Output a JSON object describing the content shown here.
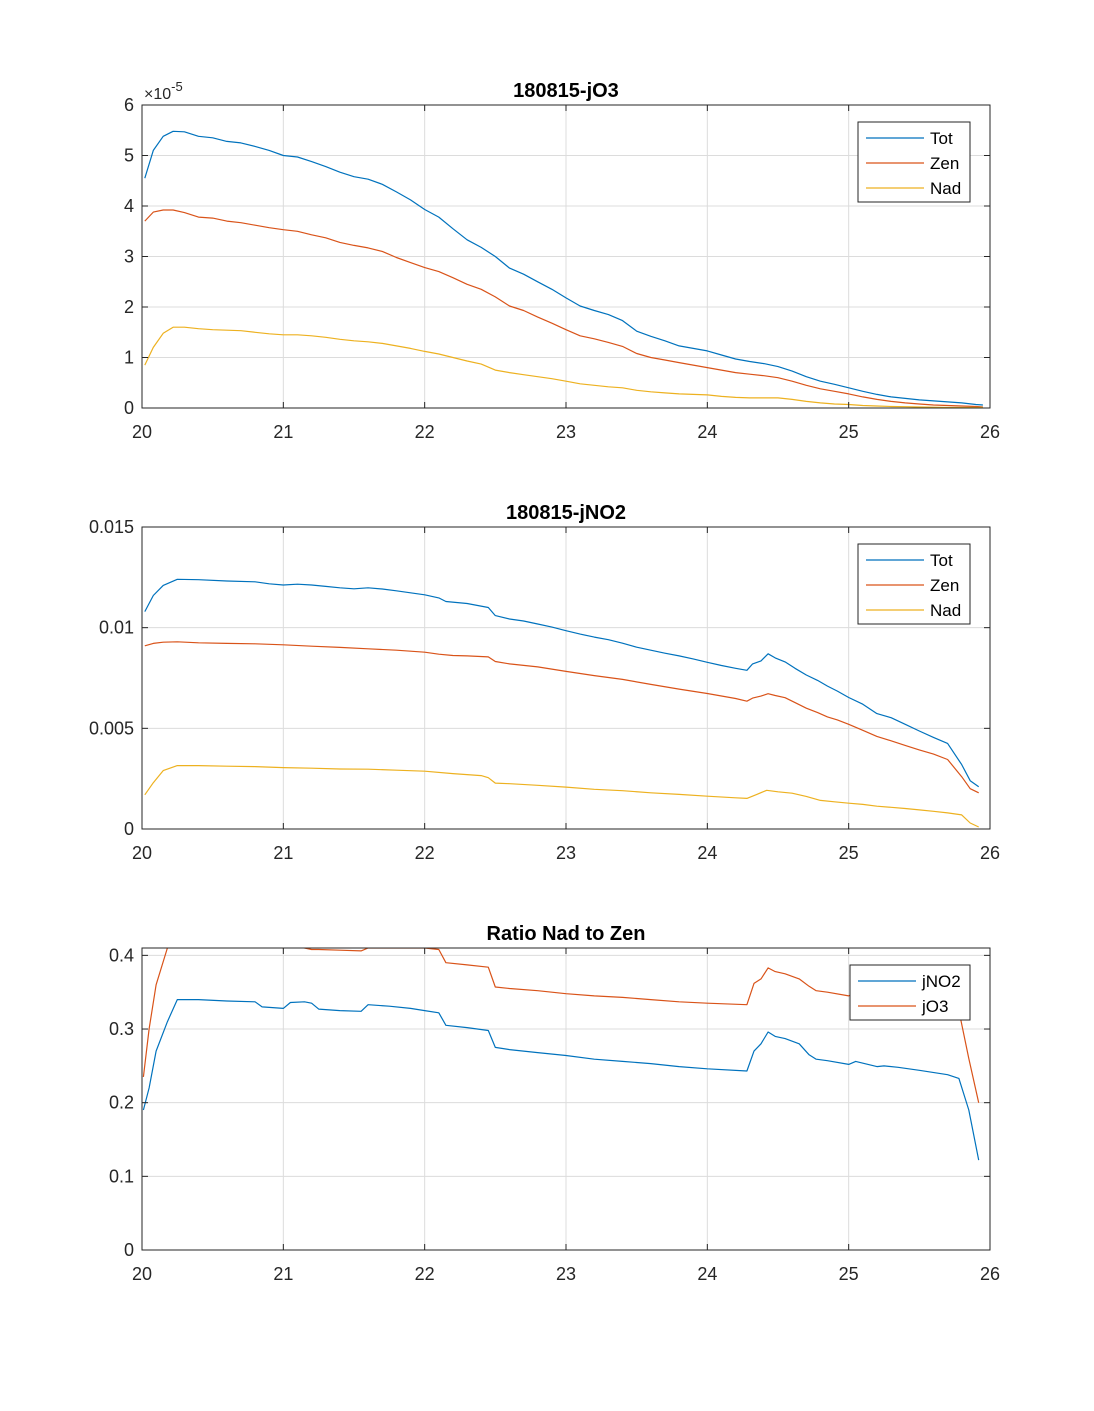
{
  "figure": {
    "colors": {
      "tot": "#0072BD",
      "zen": "#D95319",
      "nad": "#EDB120",
      "grid": "#dcdcdc",
      "axis": "#262626"
    }
  },
  "chart_data": [
    {
      "type": "line",
      "title": "180815-jO3",
      "xlabel": "",
      "ylabel": "",
      "xlim": [
        20,
        26
      ],
      "ylim": [
        0,
        6
      ],
      "xticks": [
        20,
        21,
        22,
        23,
        24,
        25,
        26
      ],
      "yticks": [
        0,
        1,
        2,
        3,
        4,
        5,
        6
      ],
      "y_exponent_label": "×10",
      "y_exponent": "-5",
      "grid": true,
      "legend_position": "top-right",
      "series": [
        {
          "name": "Tot",
          "color": "#0072BD",
          "x": [
            20.02,
            20.08,
            20.15,
            20.22,
            20.3,
            20.4,
            20.5,
            20.6,
            20.7,
            20.8,
            20.9,
            21.0,
            21.1,
            21.2,
            21.3,
            21.4,
            21.5,
            21.6,
            21.7,
            21.8,
            21.9,
            22.0,
            22.1,
            22.2,
            22.3,
            22.4,
            22.5,
            22.6,
            22.7,
            22.8,
            22.9,
            23.0,
            23.1,
            23.2,
            23.3,
            23.4,
            23.5,
            23.6,
            23.7,
            23.8,
            23.9,
            24.0,
            24.1,
            24.2,
            24.3,
            24.4,
            24.5,
            24.6,
            24.7,
            24.8,
            24.9,
            25.0,
            25.1,
            25.2,
            25.3,
            25.4,
            25.5,
            25.6,
            25.7,
            25.8,
            25.9,
            25.95
          ],
          "y": [
            4.55,
            5.1,
            5.38,
            5.48,
            5.47,
            5.38,
            5.35,
            5.28,
            5.25,
            5.18,
            5.1,
            5.0,
            4.97,
            4.88,
            4.78,
            4.67,
            4.58,
            4.53,
            4.43,
            4.28,
            4.12,
            3.93,
            3.78,
            3.55,
            3.33,
            3.18,
            3.0,
            2.77,
            2.65,
            2.5,
            2.35,
            2.18,
            2.02,
            1.93,
            1.85,
            1.73,
            1.52,
            1.42,
            1.33,
            1.23,
            1.18,
            1.13,
            1.05,
            0.97,
            0.92,
            0.88,
            0.82,
            0.73,
            0.62,
            0.53,
            0.47,
            0.4,
            0.33,
            0.27,
            0.22,
            0.19,
            0.16,
            0.14,
            0.12,
            0.1,
            0.07,
            0.06
          ]
        },
        {
          "name": "Zen",
          "color": "#D95319",
          "x": [
            20.02,
            20.08,
            20.15,
            20.22,
            20.3,
            20.4,
            20.5,
            20.6,
            20.7,
            20.8,
            20.9,
            21.0,
            21.1,
            21.2,
            21.3,
            21.4,
            21.5,
            21.6,
            21.7,
            21.8,
            21.9,
            22.0,
            22.1,
            22.2,
            22.3,
            22.4,
            22.5,
            22.6,
            22.7,
            22.8,
            22.9,
            23.0,
            23.1,
            23.2,
            23.3,
            23.4,
            23.5,
            23.6,
            23.7,
            23.8,
            23.9,
            24.0,
            24.1,
            24.2,
            24.3,
            24.4,
            24.5,
            24.6,
            24.7,
            24.8,
            24.9,
            25.0,
            25.1,
            25.2,
            25.3,
            25.4,
            25.5,
            25.6,
            25.7,
            25.8,
            25.9,
            25.95
          ],
          "y": [
            3.7,
            3.88,
            3.92,
            3.92,
            3.87,
            3.78,
            3.76,
            3.7,
            3.67,
            3.62,
            3.57,
            3.53,
            3.5,
            3.43,
            3.37,
            3.28,
            3.22,
            3.17,
            3.1,
            2.98,
            2.88,
            2.78,
            2.7,
            2.58,
            2.45,
            2.35,
            2.2,
            2.02,
            1.93,
            1.8,
            1.68,
            1.55,
            1.43,
            1.37,
            1.3,
            1.22,
            1.08,
            1.0,
            0.95,
            0.9,
            0.85,
            0.8,
            0.75,
            0.7,
            0.67,
            0.64,
            0.6,
            0.53,
            0.45,
            0.38,
            0.33,
            0.28,
            0.22,
            0.17,
            0.13,
            0.1,
            0.08,
            0.06,
            0.05,
            0.04,
            0.03,
            0.02
          ]
        },
        {
          "name": "Nad",
          "color": "#EDB120",
          "x": [
            20.02,
            20.08,
            20.15,
            20.22,
            20.3,
            20.4,
            20.5,
            20.6,
            20.7,
            20.8,
            20.9,
            21.0,
            21.1,
            21.2,
            21.3,
            21.4,
            21.5,
            21.6,
            21.7,
            21.8,
            21.9,
            22.0,
            22.1,
            22.2,
            22.3,
            22.4,
            22.5,
            22.6,
            22.7,
            22.8,
            22.9,
            23.0,
            23.1,
            23.2,
            23.3,
            23.4,
            23.5,
            23.6,
            23.7,
            23.8,
            23.9,
            24.0,
            24.1,
            24.2,
            24.3,
            24.4,
            24.5,
            24.6,
            24.7,
            24.8,
            24.9,
            25.0,
            25.1,
            25.2,
            25.3,
            25.4,
            25.5,
            25.6,
            25.7,
            25.8,
            25.9,
            25.95
          ],
          "y": [
            0.85,
            1.2,
            1.48,
            1.6,
            1.6,
            1.57,
            1.55,
            1.54,
            1.53,
            1.5,
            1.47,
            1.45,
            1.45,
            1.43,
            1.4,
            1.36,
            1.33,
            1.31,
            1.28,
            1.23,
            1.18,
            1.12,
            1.07,
            1.0,
            0.93,
            0.87,
            0.75,
            0.7,
            0.66,
            0.62,
            0.58,
            0.53,
            0.48,
            0.45,
            0.42,
            0.4,
            0.35,
            0.32,
            0.3,
            0.28,
            0.27,
            0.26,
            0.23,
            0.21,
            0.2,
            0.2,
            0.2,
            0.17,
            0.13,
            0.1,
            0.08,
            0.07,
            0.05,
            0.04,
            0.03,
            0.025,
            0.02,
            0.015,
            0.01,
            0.01,
            0.01,
            0.01
          ]
        }
      ]
    },
    {
      "type": "line",
      "title": "180815-jNO2",
      "xlabel": "",
      "ylabel": "",
      "xlim": [
        20,
        26
      ],
      "ylim": [
        0,
        0.015
      ],
      "xticks": [
        20,
        21,
        22,
        23,
        24,
        25,
        26
      ],
      "yticks": [
        0,
        0.005,
        0.01,
        0.015
      ],
      "ytick_labels": [
        "0",
        "0.005",
        "0.01",
        "0.015"
      ],
      "grid": true,
      "legend_position": "top-right",
      "series": [
        {
          "name": "Tot",
          "color": "#0072BD",
          "x": [
            20.02,
            20.08,
            20.15,
            20.25,
            20.4,
            20.6,
            20.8,
            20.9,
            21.0,
            21.1,
            21.2,
            21.3,
            21.4,
            21.5,
            21.6,
            21.7,
            21.8,
            21.9,
            22.0,
            22.1,
            22.15,
            22.3,
            22.45,
            22.5,
            22.6,
            22.7,
            22.8,
            22.9,
            23.0,
            23.1,
            23.2,
            23.3,
            23.4,
            23.5,
            23.6,
            23.7,
            23.8,
            23.9,
            24.0,
            24.1,
            24.2,
            24.28,
            24.32,
            24.38,
            24.43,
            24.48,
            24.55,
            24.62,
            24.7,
            24.78,
            24.85,
            24.92,
            25.0,
            25.1,
            25.2,
            25.3,
            25.4,
            25.5,
            25.6,
            25.7,
            25.8,
            25.86,
            25.92
          ],
          "y": [
            0.0108,
            0.0116,
            0.0121,
            0.0124,
            0.01238,
            0.01232,
            0.01228,
            0.01218,
            0.01212,
            0.01216,
            0.01212,
            0.01205,
            0.01198,
            0.01193,
            0.01198,
            0.01192,
            0.01183,
            0.01173,
            0.01163,
            0.01148,
            0.0113,
            0.0112,
            0.011,
            0.0106,
            0.01043,
            0.01033,
            0.01018,
            0.01003,
            0.00985,
            0.00968,
            0.00953,
            0.0094,
            0.00923,
            0.00903,
            0.00888,
            0.00873,
            0.0086,
            0.00845,
            0.00828,
            0.00812,
            0.00798,
            0.00788,
            0.0082,
            0.00835,
            0.0087,
            0.0085,
            0.0083,
            0.00798,
            0.00765,
            0.00738,
            0.0071,
            0.00685,
            0.00653,
            0.0062,
            0.00573,
            0.00553,
            0.0052,
            0.00487,
            0.00455,
            0.00425,
            0.0032,
            0.0024,
            0.0021
          ]
        },
        {
          "name": "Zen",
          "color": "#D95319",
          "x": [
            20.02,
            20.08,
            20.15,
            20.25,
            20.4,
            20.6,
            20.8,
            21.0,
            21.2,
            21.4,
            21.6,
            21.8,
            22.0,
            22.1,
            22.2,
            22.3,
            22.45,
            22.5,
            22.6,
            22.8,
            23.0,
            23.2,
            23.4,
            23.6,
            23.8,
            24.0,
            24.2,
            24.28,
            24.32,
            24.38,
            24.43,
            24.48,
            24.55,
            24.62,
            24.7,
            24.78,
            24.85,
            24.92,
            25.0,
            25.1,
            25.2,
            25.3,
            25.4,
            25.5,
            25.6,
            25.7,
            25.8,
            25.86,
            25.92
          ],
          "y": [
            0.0091,
            0.00922,
            0.00928,
            0.0093,
            0.00925,
            0.00922,
            0.0092,
            0.00915,
            0.00908,
            0.00902,
            0.00895,
            0.00888,
            0.00878,
            0.00868,
            0.00862,
            0.0086,
            0.00855,
            0.00832,
            0.0082,
            0.00805,
            0.00783,
            0.00762,
            0.00743,
            0.00718,
            0.00695,
            0.00673,
            0.00648,
            0.00635,
            0.0065,
            0.0066,
            0.00672,
            0.00663,
            0.00652,
            0.00628,
            0.006,
            0.00578,
            0.00557,
            0.00542,
            0.0052,
            0.0049,
            0.0046,
            0.00438,
            0.00415,
            0.00393,
            0.00372,
            0.00345,
            0.0026,
            0.002,
            0.0018
          ]
        },
        {
          "name": "Nad",
          "color": "#EDB120",
          "x": [
            20.02,
            20.08,
            20.15,
            20.25,
            20.4,
            20.6,
            20.8,
            21.0,
            21.2,
            21.4,
            21.6,
            21.8,
            22.0,
            22.2,
            22.4,
            22.45,
            22.5,
            22.6,
            22.8,
            23.0,
            23.2,
            23.4,
            23.6,
            23.8,
            24.0,
            24.2,
            24.28,
            24.35,
            24.42,
            24.5,
            24.6,
            24.7,
            24.8,
            24.9,
            25.0,
            25.1,
            25.2,
            25.3,
            25.4,
            25.5,
            25.6,
            25.7,
            25.8,
            25.86,
            25.92
          ],
          "y": [
            0.0017,
            0.0023,
            0.0029,
            0.00315,
            0.00315,
            0.00312,
            0.0031,
            0.00305,
            0.00302,
            0.00298,
            0.00297,
            0.00292,
            0.00287,
            0.00275,
            0.00265,
            0.00255,
            0.00228,
            0.00225,
            0.00217,
            0.00208,
            0.00197,
            0.0019,
            0.0018,
            0.00172,
            0.00163,
            0.00155,
            0.00152,
            0.00172,
            0.00192,
            0.00185,
            0.00178,
            0.00162,
            0.00142,
            0.00135,
            0.00128,
            0.00122,
            0.00113,
            0.00108,
            0.00102,
            0.00095,
            0.00088,
            0.0008,
            0.0007,
            0.0003,
            0.0001
          ]
        }
      ]
    },
    {
      "type": "line",
      "title": "Ratio Nad to Zen",
      "xlabel": "",
      "ylabel": "",
      "xlim": [
        20,
        26
      ],
      "ylim": [
        0,
        0.41
      ],
      "xticks": [
        20,
        21,
        22,
        23,
        24,
        25,
        26
      ],
      "yticks": [
        0,
        0.1,
        0.2,
        0.3,
        0.4
      ],
      "grid": true,
      "legend_position": "top-right",
      "series": [
        {
          "name": "jNO2",
          "color": "#0072BD",
          "x": [
            20.01,
            20.05,
            20.1,
            20.18,
            20.25,
            20.4,
            20.6,
            20.8,
            20.85,
            21.0,
            21.05,
            21.15,
            21.2,
            21.25,
            21.4,
            21.55,
            21.6,
            21.75,
            21.9,
            22.0,
            22.1,
            22.15,
            22.3,
            22.45,
            22.5,
            22.6,
            22.8,
            23.0,
            23.2,
            23.4,
            23.6,
            23.8,
            24.0,
            24.28,
            24.33,
            24.38,
            24.43,
            24.48,
            24.55,
            24.65,
            24.72,
            24.77,
            24.85,
            25.0,
            25.05,
            25.2,
            25.25,
            25.35,
            25.5,
            25.7,
            25.78,
            25.85,
            25.92
          ],
          "y": [
            0.19,
            0.22,
            0.27,
            0.31,
            0.34,
            0.34,
            0.338,
            0.337,
            0.33,
            0.328,
            0.336,
            0.337,
            0.335,
            0.327,
            0.325,
            0.324,
            0.333,
            0.331,
            0.328,
            0.325,
            0.322,
            0.305,
            0.302,
            0.298,
            0.275,
            0.272,
            0.268,
            0.264,
            0.259,
            0.256,
            0.253,
            0.249,
            0.246,
            0.243,
            0.27,
            0.28,
            0.296,
            0.29,
            0.287,
            0.28,
            0.265,
            0.259,
            0.257,
            0.252,
            0.256,
            0.249,
            0.25,
            0.248,
            0.244,
            0.238,
            0.233,
            0.19,
            0.122
          ]
        },
        {
          "name": "jO3",
          "color": "#D95319",
          "x": [
            20.01,
            20.05,
            20.1,
            20.18,
            20.25,
            20.4,
            20.6,
            20.8,
            20.85,
            21.0,
            21.05,
            21.15,
            21.2,
            21.25,
            21.4,
            21.55,
            21.6,
            21.75,
            21.9,
            22.0,
            22.1,
            22.15,
            22.3,
            22.45,
            22.5,
            22.6,
            22.8,
            23.0,
            23.2,
            23.4,
            23.6,
            23.8,
            24.0,
            24.28,
            24.33,
            24.38,
            24.43,
            24.48,
            24.55,
            24.65,
            24.72,
            24.77,
            24.85,
            25.0,
            25.05,
            25.2,
            25.25,
            25.35,
            25.5,
            25.7,
            25.78,
            25.85,
            25.92
          ],
          "y": [
            0.235,
            0.3,
            0.36,
            0.41,
            0.415,
            0.418,
            0.418,
            0.415,
            0.412,
            0.41,
            0.412,
            0.41,
            0.408,
            0.408,
            0.407,
            0.406,
            0.41,
            0.41,
            0.41,
            0.41,
            0.408,
            0.39,
            0.387,
            0.384,
            0.357,
            0.355,
            0.352,
            0.348,
            0.345,
            0.343,
            0.34,
            0.337,
            0.335,
            0.333,
            0.362,
            0.368,
            0.383,
            0.378,
            0.375,
            0.368,
            0.358,
            0.352,
            0.35,
            0.345,
            0.35,
            0.345,
            0.345,
            0.343,
            0.34,
            0.33,
            0.325,
            0.26,
            0.2
          ]
        }
      ]
    }
  ]
}
